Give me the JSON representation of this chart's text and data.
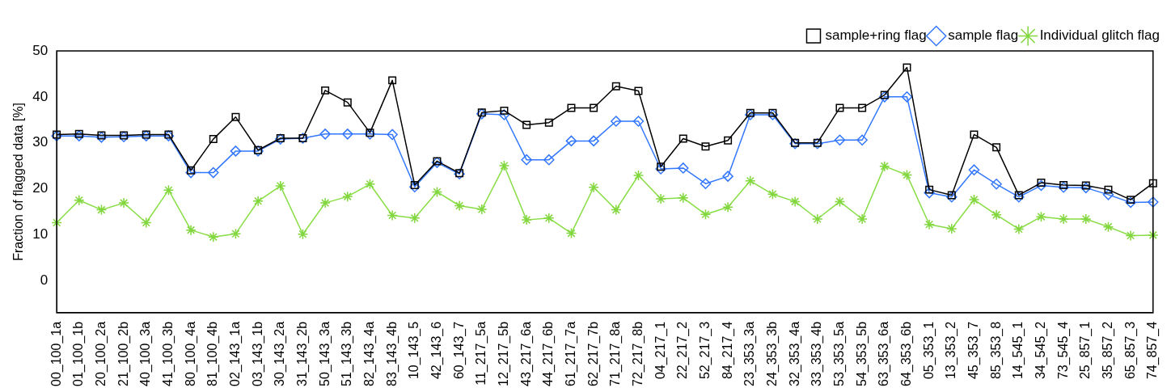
{
  "chart_data": {
    "type": "line",
    "ylabel": "Fraction of flagged data [%]",
    "categories": [
      "00_100_1a",
      "01_100_1b",
      "20_100_2a",
      "21_100_2b",
      "40_100_3a",
      "41_100_3b",
      "80_100_4a",
      "81_100_4b",
      "02_143_1a",
      "03_143_1b",
      "30_143_2a",
      "31_143_2b",
      "50_143_3a",
      "51_143_3b",
      "82_143_4a",
      "83_143_4b",
      "10_143_5",
      "42_143_6",
      "60_143_7",
      "11_217_5a",
      "12_217_5b",
      "43_217_6a",
      "44_217_6b",
      "61_217_7a",
      "62_217_7b",
      "71_217_8a",
      "72_217_8b",
      "04_217_1",
      "22_217_2",
      "52_217_3",
      "84_217_4",
      "23_353_3a",
      "24_353_3b",
      "32_353_4a",
      "33_353_4b",
      "53_353_5a",
      "54_353_5b",
      "63_353_6a",
      "64_353_6b",
      "05_353_1",
      "13_353_2",
      "45_353_7",
      "85_353_8",
      "14_545_1",
      "34_545_2",
      "73_545_4",
      "25_857_1",
      "35_857_2",
      "65_857_3",
      "74_857_4"
    ],
    "series": [
      {
        "name": "sample+ring flag",
        "color": "#000000",
        "marker": "square",
        "values": [
          31.8,
          31.9,
          31.6,
          31.6,
          31.8,
          31.8,
          24.0,
          30.8,
          35.6,
          28.4,
          31.0,
          31.0,
          41.4,
          38.8,
          32.2,
          43.6,
          20.8,
          26.0,
          23.4,
          36.6,
          37.0,
          33.9,
          34.4,
          37.6,
          37.6,
          42.3,
          41.3,
          24.8,
          30.9,
          29.2,
          30.5,
          36.5,
          36.5,
          30.0,
          30.0,
          37.6,
          37.6,
          40.4,
          46.4,
          19.8,
          18.6,
          31.8,
          29.0,
          18.6,
          21.3,
          20.8,
          20.7,
          19.8,
          17.6,
          21.2
        ]
      },
      {
        "name": "sample flag",
        "color": "#3377ff",
        "marker": "diamond",
        "values": [
          31.5,
          31.5,
          31.2,
          31.3,
          31.5,
          31.5,
          23.5,
          23.5,
          28.2,
          28.2,
          30.8,
          31.0,
          31.9,
          31.9,
          31.9,
          31.8,
          20.4,
          25.7,
          23.2,
          36.3,
          36.1,
          26.3,
          26.3,
          30.4,
          30.4,
          34.7,
          34.7,
          24.3,
          24.5,
          21.1,
          22.7,
          36.1,
          36.1,
          29.8,
          29.8,
          30.6,
          30.6,
          40.0,
          40.0,
          19.1,
          18.2,
          24.1,
          21.0,
          18.2,
          20.7,
          20.3,
          20.2,
          18.7,
          17.0,
          17.1
        ]
      },
      {
        "name": "Individual glitch flag",
        "color": "#88dd44",
        "marker": "cross",
        "values": [
          12.6,
          17.5,
          15.4,
          16.9,
          12.6,
          19.7,
          11.0,
          9.5,
          10.2,
          17.3,
          20.6,
          10.1,
          16.9,
          18.3,
          21.0,
          14.2,
          13.6,
          19.3,
          16.3,
          15.5,
          25.0,
          13.2,
          13.6,
          10.3,
          20.3,
          15.4,
          22.9,
          17.8,
          18.0,
          14.4,
          16.0,
          21.7,
          18.8,
          17.2,
          13.4,
          17.2,
          13.4,
          24.9,
          23.0,
          12.2,
          11.3,
          17.6,
          14.3,
          11.2,
          13.9,
          13.4,
          13.4,
          11.7,
          9.8,
          9.9
        ]
      }
    ],
    "ylim": [
      -7,
      50
    ],
    "yticks": [
      0,
      10,
      20,
      30,
      40,
      50
    ],
    "grid": false,
    "legend": "top right",
    "line_style": "solid"
  }
}
